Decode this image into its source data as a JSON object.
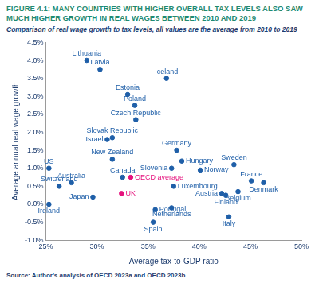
{
  "chart_data": {
    "type": "scatter",
    "title": "FIGURE 4.1: MANY COUNTRIES WITH HIGHER OVERALL TAX LEVELS ALSO SAW MUCH HIGHER GROWTH IN REAL WAGES BETWEEN 2010 AND 2019",
    "subtitle": "Comparison of real wage growth to tax levels, all values are the average from 2010 to 2019",
    "x_label": "Average tax-to-GDP ratio",
    "y_label": "Average annual real wage growth",
    "source": "Source: Author's analysis of OECD 2023a and OECD 2023b",
    "point_labels": [
      "Lithuania",
      "Latvia",
      "Iceland",
      "Estonia",
      "Poland",
      "Czech Republic",
      "Slovak Republic",
      "Israel",
      "New Zealand",
      "Canada",
      "OECD average",
      "UK",
      "US",
      "Switzerland",
      "Australia",
      "Ireland",
      "Japan",
      "Spain",
      "Portugal",
      "Netherlands",
      "Luxembourg",
      "Slovenia",
      "Germany",
      "Hungary",
      "Norway",
      "Sweden",
      "France",
      "Denmark",
      "Austria",
      "Finland",
      "Belgium",
      "Italy"
    ],
    "x": [
      29.0,
      30.3,
      36.8,
      33.0,
      33.7,
      33.8,
      31.5,
      31.0,
      31.5,
      32.5,
      33.3,
      32.4,
      25.3,
      26.3,
      27.5,
      25.3,
      29.6,
      35.5,
      35.7,
      37.3,
      37.5,
      37.3,
      37.8,
      38.3,
      40.1,
      43.4,
      45.1,
      46.3,
      42.2,
      42.6,
      43.8,
      42.9
    ],
    "values": [
      4.0,
      3.75,
      3.5,
      3.05,
      2.75,
      2.35,
      1.85,
      1.8,
      1.25,
      0.75,
      0.75,
      0.3,
      1.0,
      0.5,
      0.6,
      0.0,
      0.2,
      -0.5,
      -0.15,
      -0.1,
      0.5,
      1.0,
      1.5,
      1.2,
      0.95,
      1.1,
      0.65,
      0.6,
      0.3,
      0.25,
      0.35,
      -0.35
    ],
    "colors": [
      "#1f5fa8",
      "#1f5fa8",
      "#1f5fa8",
      "#1f5fa8",
      "#1f5fa8",
      "#1f5fa8",
      "#1f5fa8",
      "#1f5fa8",
      "#1f5fa8",
      "#1f5fa8",
      "#e5127d",
      "#e5127d",
      "#1f5fa8",
      "#1f5fa8",
      "#1f5fa8",
      "#1f5fa8",
      "#1f5fa8",
      "#1f5fa8",
      "#1f5fa8",
      "#1f5fa8",
      "#1f5fa8",
      "#1f5fa8",
      "#1f5fa8",
      "#1f5fa8",
      "#1f5fa8",
      "#1f5fa8",
      "#1f5fa8",
      "#1f5fa8",
      "#1f5fa8",
      "#1f5fa8",
      "#1f5fa8",
      "#1f5fa8"
    ],
    "marker": "circle",
    "xlim": [
      25,
      50
    ],
    "xticks": [
      {
        "value": 25,
        "label": "25%"
      },
      {
        "value": 30,
        "label": "30%"
      },
      {
        "value": 35,
        "label": "35%"
      },
      {
        "value": 40,
        "label": "40%"
      },
      {
        "value": 45,
        "label": "45%"
      },
      {
        "value": 50,
        "label": "50%"
      }
    ],
    "ylim": [
      -1,
      4.5
    ],
    "yticks": [
      {
        "value": -1,
        "label": "-1.0%"
      },
      {
        "value": -0.5,
        "label": "-0.5%"
      },
      {
        "value": 0,
        "label": "0.0%"
      },
      {
        "value": 0.5,
        "label": "0.5%"
      },
      {
        "value": 1,
        "label": "1.0%"
      },
      {
        "value": 1.5,
        "label": "1.5%"
      },
      {
        "value": 2,
        "label": "2.0%"
      },
      {
        "value": 2.5,
        "label": "2.5%"
      },
      {
        "value": 3,
        "label": "3.0%"
      },
      {
        "value": 3.5,
        "label": "3.5%"
      },
      {
        "value": 4,
        "label": "4.0%"
      },
      {
        "value": 4.5,
        "label": "4.5%"
      }
    ],
    "grid": false,
    "legend": "none"
  }
}
